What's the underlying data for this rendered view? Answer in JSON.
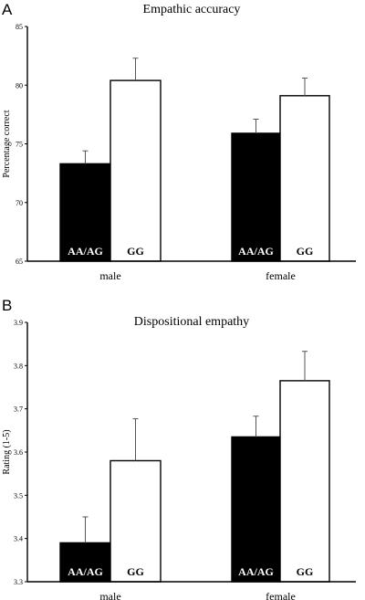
{
  "chart_data": [
    {
      "panel": "A",
      "type": "bar",
      "title": "Empathic accuracy",
      "ylabel": "Percentage correct",
      "xlabel": "",
      "ylim": [
        65,
        85
      ],
      "yticks": [
        "65",
        "70",
        "75",
        "80",
        "85"
      ],
      "categories": [
        "male",
        "female"
      ],
      "series": [
        {
          "name": "AA/AG",
          "color": "#000000",
          "values": [
            73.3,
            75.9
          ],
          "error": [
            1.1,
            1.2
          ]
        },
        {
          "name": "GG",
          "color": "#ffffff",
          "values": [
            80.4,
            79.1
          ],
          "error": [
            1.9,
            1.5
          ]
        }
      ],
      "grid": false,
      "legend": "none"
    },
    {
      "panel": "B",
      "type": "bar",
      "title": "Dispositional empathy",
      "ylabel": "Rating (1-5)",
      "xlabel": "",
      "ylim": [
        3.3,
        3.9
      ],
      "yticks": [
        "3.3",
        "3.4",
        "3.5",
        "3.6",
        "3.7",
        "3.8",
        "3.9"
      ],
      "categories": [
        "male",
        "female"
      ],
      "series": [
        {
          "name": "AA/AG",
          "color": "#000000",
          "values": [
            3.39,
            3.635
          ],
          "error": [
            0.06,
            0.048
          ]
        },
        {
          "name": "GG",
          "color": "#ffffff",
          "values": [
            3.58,
            3.765
          ],
          "error": [
            0.097,
            0.068
          ]
        }
      ],
      "grid": false,
      "legend": "none"
    }
  ]
}
